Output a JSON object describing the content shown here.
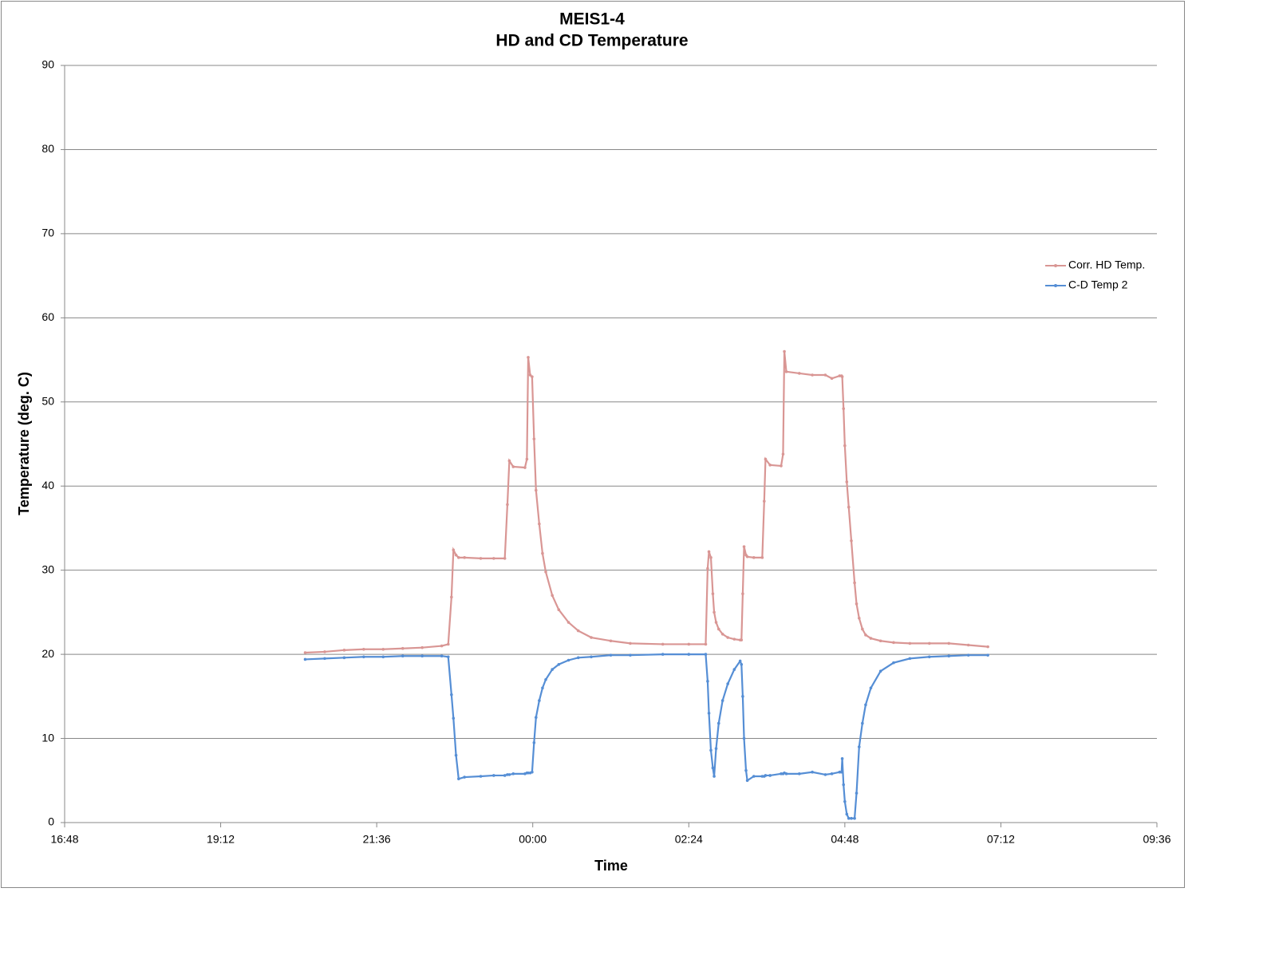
{
  "chart_data": {
    "type": "line",
    "title": "MEIS1-4",
    "subtitle": "HD and CD Temperature",
    "x_label": "Time",
    "y_label": "Temperature (deg. C)",
    "xlim": [
      16.8,
      33.6
    ],
    "xticks": [
      {
        "value": 16.8,
        "label": "16:48"
      },
      {
        "value": 19.2,
        "label": "19:12"
      },
      {
        "value": 21.6,
        "label": "21:36"
      },
      {
        "value": 24,
        "label": "00:00"
      },
      {
        "value": 26.4,
        "label": "02:24"
      },
      {
        "value": 28.8,
        "label": "04:48"
      },
      {
        "value": 31.2,
        "label": "07:12"
      },
      {
        "value": 33.6,
        "label": "09:36"
      }
    ],
    "ylim": [
      0,
      90
    ],
    "yticks": [
      0,
      10,
      20,
      30,
      40,
      50,
      60,
      70,
      80,
      90
    ],
    "grid": true,
    "legend": "right",
    "x": [
      20.5,
      20.8,
      21.1,
      21.4,
      21.7,
      22.0,
      22.3,
      22.6,
      22.7,
      22.75,
      22.78,
      22.82,
      22.86,
      22.95,
      23.2,
      23.4,
      23.57,
      23.61,
      23.64,
      23.7,
      23.88,
      23.91,
      23.93,
      23.96,
      23.99,
      24.02,
      24.05,
      24.1,
      24.15,
      24.2,
      24.3,
      24.4,
      24.55,
      24.7,
      24.9,
      25.2,
      25.5,
      26.0,
      26.4,
      26.66,
      26.69,
      26.71,
      26.74,
      26.77,
      26.79,
      26.82,
      26.86,
      26.92,
      27.0,
      27.1,
      27.19,
      27.21,
      27.23,
      27.25,
      27.28,
      27.3,
      27.4,
      27.53,
      27.56,
      27.58,
      27.65,
      27.82,
      27.85,
      27.87,
      27.9,
      28.1,
      28.3,
      28.5,
      28.6,
      28.72,
      28.75,
      28.76,
      28.78,
      28.8,
      28.83,
      28.86,
      28.9,
      28.95,
      28.98,
      29.02,
      29.07,
      29.12,
      29.2,
      29.35,
      29.55,
      29.8,
      30.1,
      30.4,
      30.7,
      31.0
    ],
    "series": [
      {
        "name": "Corr. HD Temp.",
        "color": "#d99694",
        "values": [
          20.2,
          20.3,
          20.5,
          20.6,
          20.6,
          20.7,
          20.8,
          21.0,
          21.2,
          26.8,
          32.4,
          31.8,
          31.5,
          31.5,
          31.4,
          31.4,
          31.4,
          37.8,
          43.0,
          42.3,
          42.2,
          43.2,
          55.3,
          53.2,
          53.0,
          45.6,
          39.5,
          35.5,
          32.0,
          29.8,
          27.0,
          25.3,
          23.8,
          22.8,
          22.0,
          21.6,
          21.3,
          21.2,
          21.2,
          21.2,
          30.2,
          32.2,
          31.5,
          27.2,
          25.0,
          23.8,
          23.0,
          22.4,
          22.0,
          21.8,
          21.7,
          21.7,
          27.2,
          32.8,
          31.8,
          31.6,
          31.5,
          31.5,
          38.2,
          43.2,
          42.5,
          42.4,
          43.8,
          56.0,
          53.6,
          53.4,
          53.2,
          53.2,
          52.8,
          53.1,
          53.1,
          53.0,
          49.2,
          44.8,
          40.5,
          37.5,
          33.5,
          28.5,
          26.0,
          24.3,
          23.0,
          22.3,
          21.9,
          21.6,
          21.4,
          21.3,
          21.3,
          21.3,
          21.1,
          20.9
        ]
      },
      {
        "name": "C-D Temp 2",
        "color": "#558ed5",
        "values": [
          19.4,
          19.5,
          19.6,
          19.7,
          19.7,
          19.8,
          19.8,
          19.8,
          19.7,
          15.2,
          12.4,
          8.0,
          5.2,
          5.4,
          5.5,
          5.6,
          5.6,
          5.7,
          5.7,
          5.8,
          5.8,
          5.9,
          5.9,
          5.9,
          6.0,
          9.5,
          12.5,
          14.5,
          16.0,
          17.0,
          18.2,
          18.8,
          19.3,
          19.6,
          19.7,
          19.9,
          19.9,
          20.0,
          20.0,
          20.0,
          16.8,
          13.0,
          8.6,
          6.5,
          5.5,
          8.8,
          11.8,
          14.5,
          16.5,
          18.2,
          19.2,
          18.8,
          15.0,
          10.0,
          6.2,
          5.0,
          5.5,
          5.5,
          5.5,
          5.6,
          5.6,
          5.8,
          5.8,
          5.9,
          5.8,
          5.8,
          6.0,
          5.7,
          5.8,
          6.0,
          6.0,
          7.6,
          4.5,
          2.5,
          1.0,
          0.5,
          0.5,
          0.5,
          3.5,
          9.0,
          11.8,
          14.0,
          16.0,
          18.0,
          19.0,
          19.5,
          19.7,
          19.8,
          19.9,
          19.9
        ]
      }
    ]
  }
}
